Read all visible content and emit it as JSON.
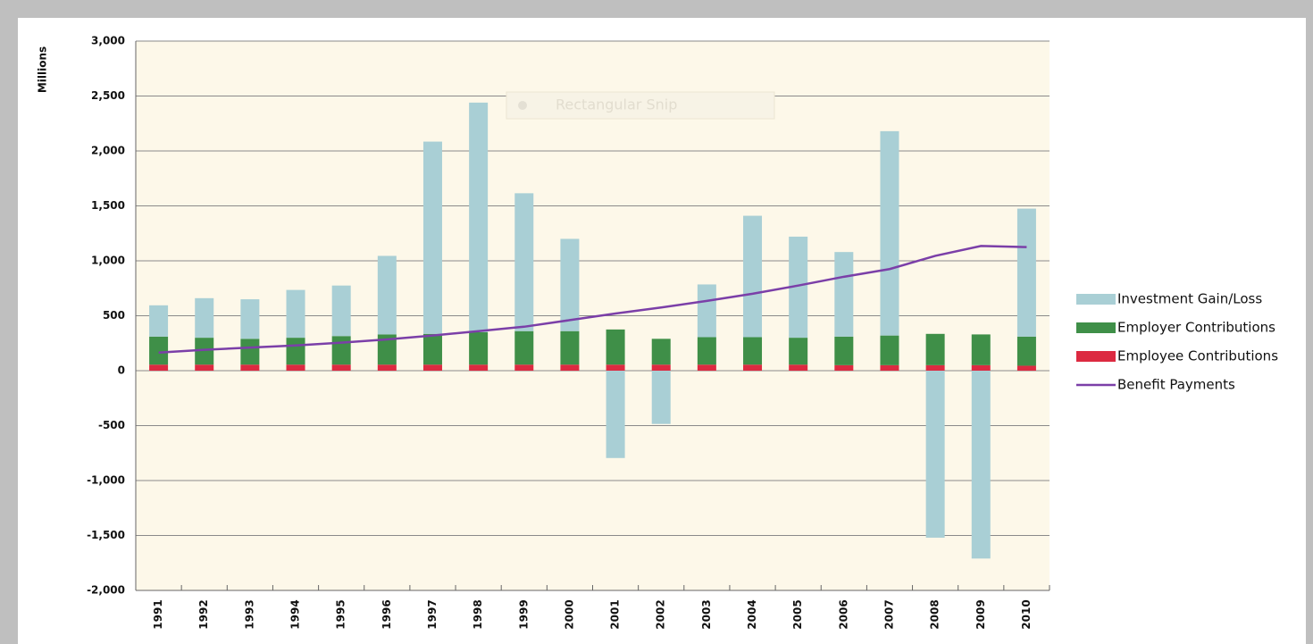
{
  "chart_data": {
    "type": "bar",
    "ylabel": "Millions",
    "categories": [
      "1991",
      "1992",
      "1993",
      "1994",
      "1995",
      "1996",
      "1997",
      "1998",
      "1999",
      "2000",
      "2001",
      "2002",
      "2003",
      "2004",
      "2005",
      "2006",
      "2007",
      "2008",
      "2009",
      "2010"
    ],
    "series": [
      {
        "name": "Investment Gain/Loss",
        "color": "#a9cfd5",
        "type": "bar",
        "values": [
          285,
          360,
          360,
          435,
          460,
          715,
          1750,
          2090,
          1255,
          840,
          -795,
          -485,
          480,
          1105,
          920,
          770,
          1860,
          -1520,
          -1710,
          1165
        ]
      },
      {
        "name": "Employer Contributions",
        "color": "#3f8f48",
        "type": "bar",
        "values": [
          255,
          245,
          235,
          245,
          260,
          275,
          280,
          295,
          305,
          305,
          320,
          235,
          250,
          250,
          245,
          260,
          270,
          285,
          280,
          265
        ]
      },
      {
        "name": "Employee Contributions",
        "color": "#dc2a41",
        "type": "bar",
        "values": [
          55,
          55,
          55,
          55,
          55,
          55,
          55,
          55,
          55,
          55,
          55,
          55,
          55,
          55,
          55,
          50,
          50,
          50,
          50,
          45
        ]
      },
      {
        "name": "Benefit Payments",
        "color": "#7b3fa8",
        "type": "line",
        "values": [
          165,
          190,
          210,
          230,
          255,
          285,
          320,
          360,
          400,
          460,
          520,
          575,
          635,
          700,
          775,
          855,
          925,
          1045,
          1135,
          1125
        ]
      }
    ],
    "stacked": true,
    "ylim": [
      -2000,
      3000
    ],
    "yticks": [
      {
        "value": -2000,
        "label": "-2,000"
      },
      {
        "value": -1500,
        "label": "-1,500"
      },
      {
        "value": -1000,
        "label": "-1,000"
      },
      -500,
      0,
      500,
      {
        "value": 1000,
        "label": "1,000"
      },
      {
        "value": 1500,
        "label": "1,500"
      },
      {
        "value": 2000,
        "label": "2,000"
      },
      {
        "value": 2500,
        "label": "2,500"
      },
      {
        "value": 3000,
        "label": "3,000"
      }
    ],
    "grid": true,
    "legend": "right"
  },
  "overlay": {
    "label": "Rectangular Snip"
  }
}
